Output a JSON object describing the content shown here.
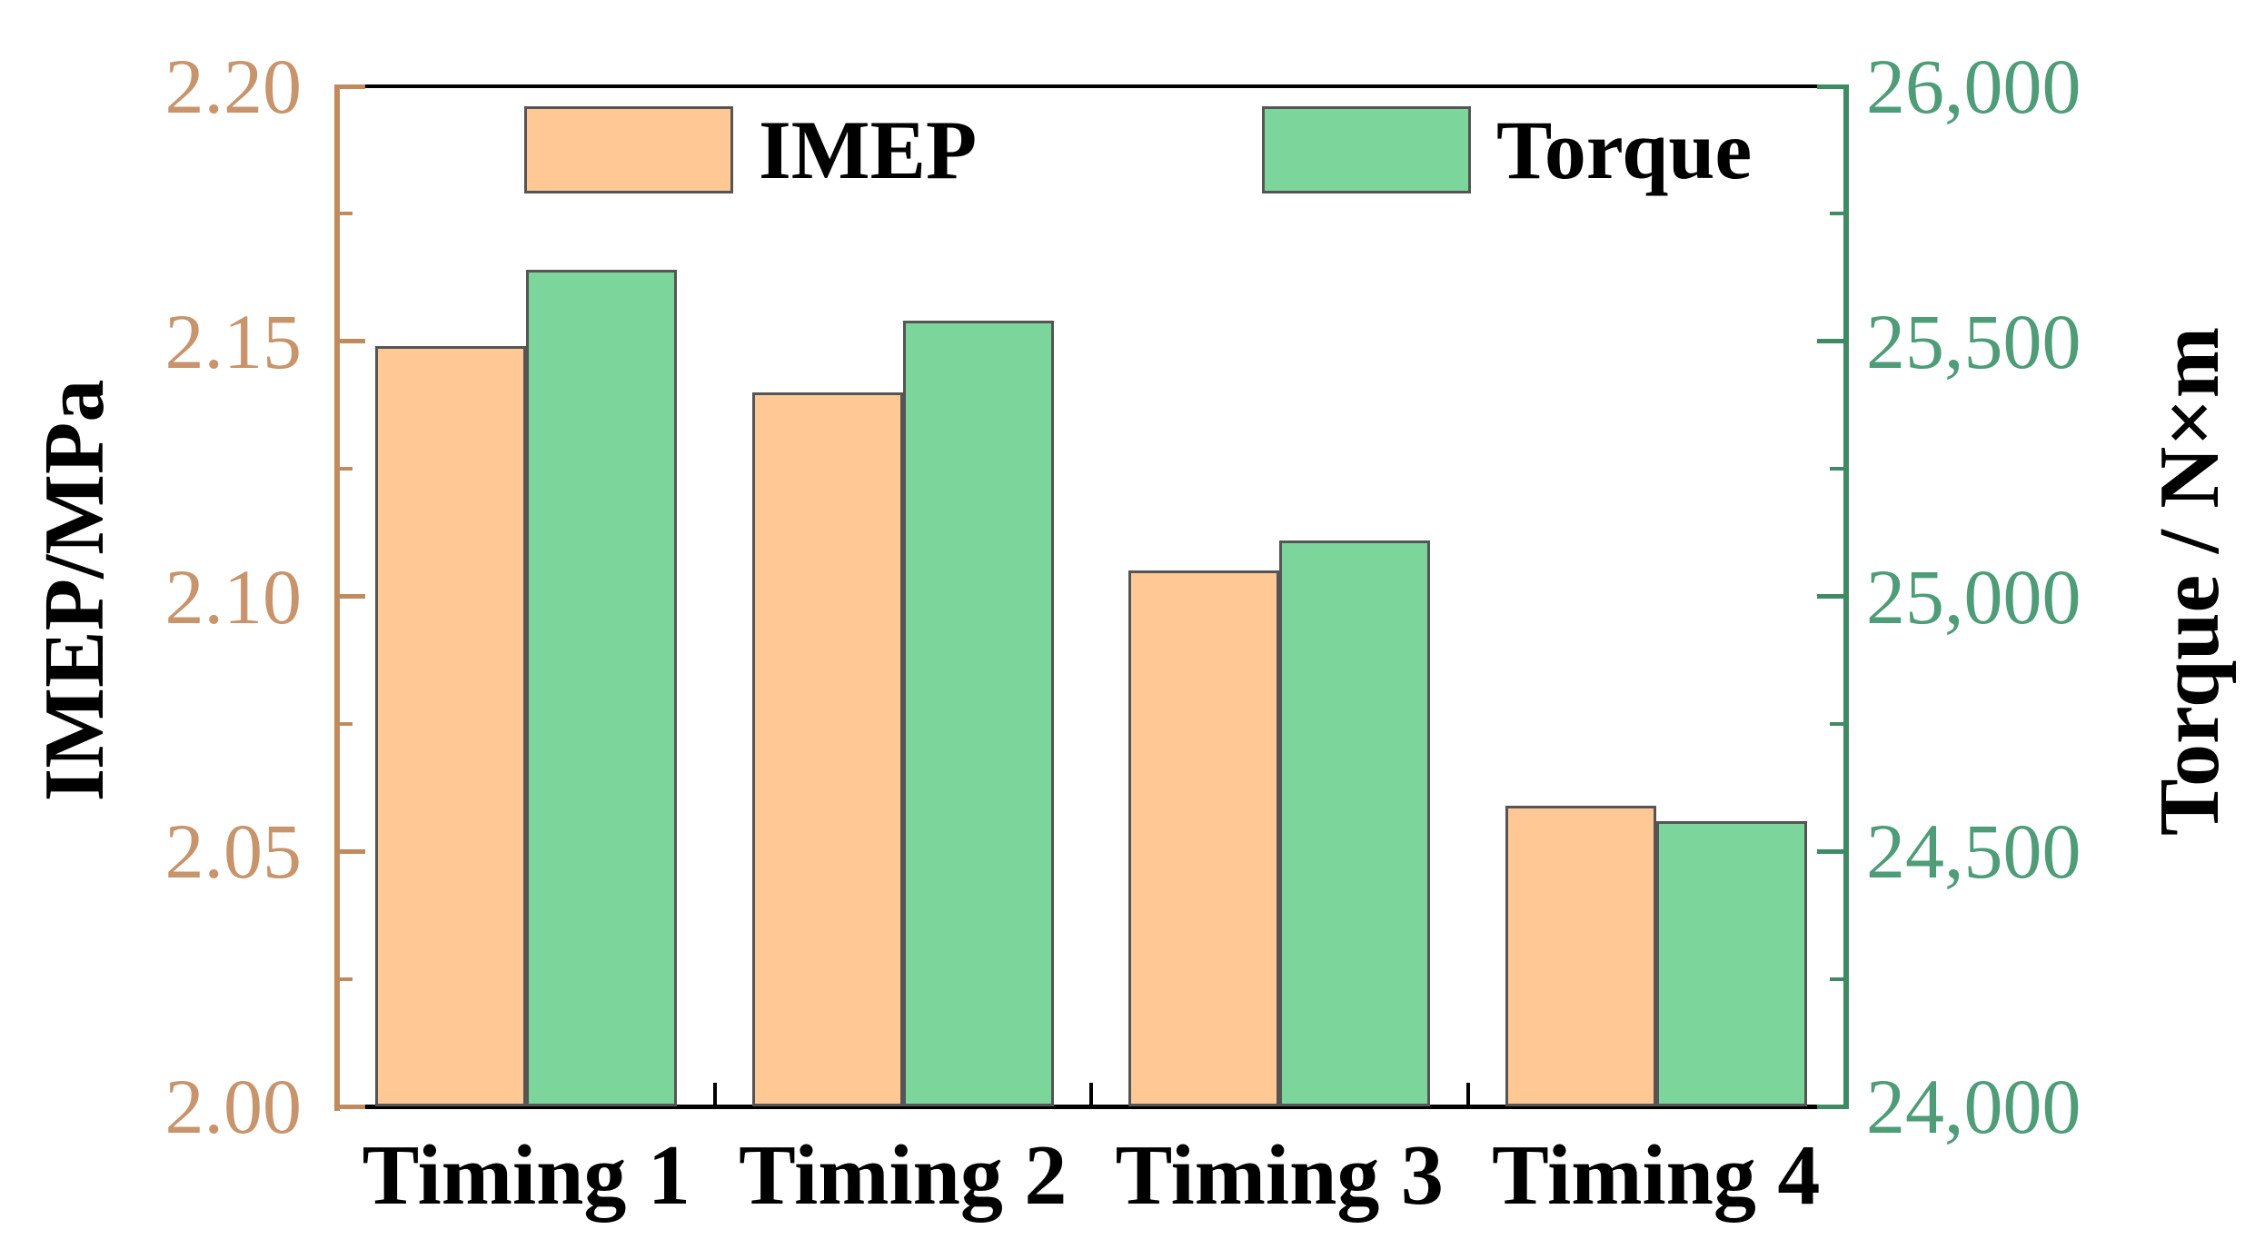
{
  "chart_data": {
    "type": "bar",
    "subtype": "grouped-dual-axis",
    "categories": [
      "Timing 1",
      "Timing 2",
      "Timing 3",
      "Timing 4"
    ],
    "series": [
      {
        "name": "IMEP",
        "axis": "left",
        "color": "#FFC894",
        "values": [
          2.149,
          2.14,
          2.105,
          2.059
        ]
      },
      {
        "name": "Torque",
        "axis": "right",
        "color": "#7CD69C",
        "values": [
          25640,
          25540,
          25110,
          24560
        ]
      }
    ],
    "left_axis": {
      "title": "IMEP/MPa",
      "min": 2.0,
      "max": 2.2,
      "major_ticks": [
        2.2,
        2.15,
        2.1,
        2.05,
        2.0
      ],
      "major_tick_labels": [
        "2.20",
        "2.15",
        "2.10",
        "2.05",
        "2.00"
      ],
      "minor_ticks": [
        2.175,
        2.125,
        2.075,
        2.025
      ],
      "line_color": "#C08A5E",
      "label_color": "#C8946C"
    },
    "right_axis": {
      "title": "Torque / N×m",
      "min": 24000,
      "max": 26000,
      "major_ticks": [
        26000,
        25500,
        25000,
        24500,
        24000
      ],
      "major_tick_labels": [
        "26,000",
        "25,500",
        "25,000",
        "24,500",
        "24,000"
      ],
      "minor_ticks": [
        25750,
        25250,
        24750,
        24250
      ],
      "line_color": "#3E8A62",
      "label_color": "#4E9C78"
    },
    "x_axis": {
      "tick_color": "#000000"
    },
    "bar_border_color": "#555555",
    "frame_color": "#000000",
    "grid": false,
    "legend_position": "top-inside",
    "legend": [
      "IMEP",
      "Torque"
    ]
  }
}
